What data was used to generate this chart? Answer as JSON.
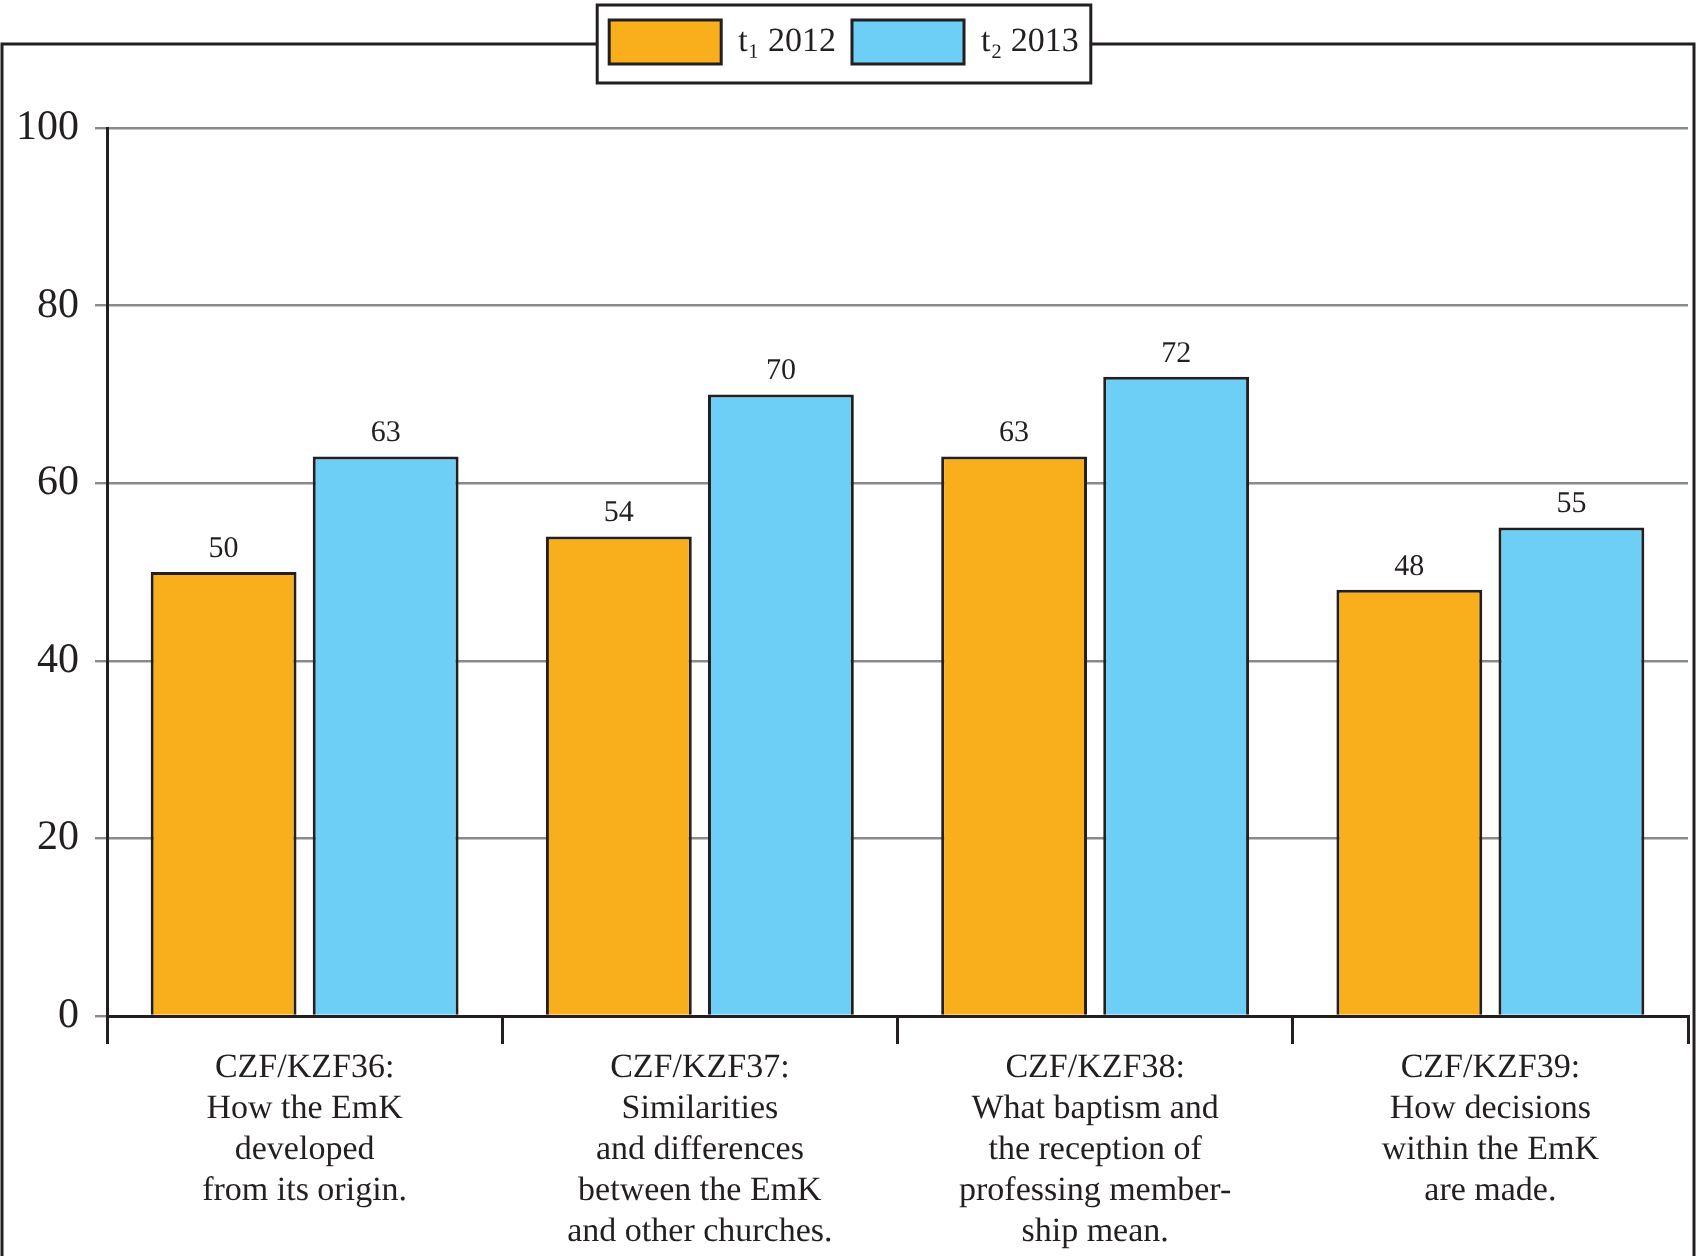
{
  "chart_data": {
    "type": "bar",
    "categories": [
      "CZF/KZF36:\nHow the EmK\ndeveloped\nfrom its origin.",
      "CZF/KZF37:\nSimilarities\nand differences\nbetween the EmK\nand other churches.",
      "CZF/KZF38:\nWhat baptism and\nthe reception of\nprofessing member-\nship mean.",
      "CZF/KZF39:\nHow decisions\nwithin the EmK\nare made."
    ],
    "series": [
      {
        "name": "t₁ 2012",
        "color": "#f9ae1b",
        "values": [
          50,
          54,
          63,
          48
        ]
      },
      {
        "name": "t₂ 2013",
        "color": "#6dcff6",
        "values": [
          63,
          70,
          72,
          55
        ]
      }
    ],
    "ylim": [
      0,
      100
    ],
    "yticks": [
      0,
      20,
      40,
      60,
      80,
      100
    ],
    "grid": "y",
    "legend": "top",
    "data_labels": true
  }
}
